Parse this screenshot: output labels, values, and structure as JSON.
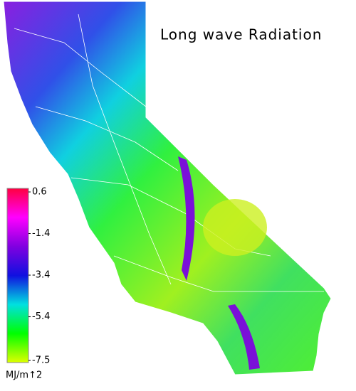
{
  "title": "Long wave Radiation",
  "colorbar": {
    "lim": [
      -7.5,
      0.6
    ],
    "ticks": [
      0.6,
      -1.4,
      -3.4,
      -5.4,
      -7.5
    ],
    "unit": "MJ/m↑2",
    "colors": [
      "#ddff00",
      "#00ff00",
      "#00e0e0",
      "#1010e0",
      "#8000e0",
      "#ff00ff",
      "#ff0040"
    ]
  }
}
